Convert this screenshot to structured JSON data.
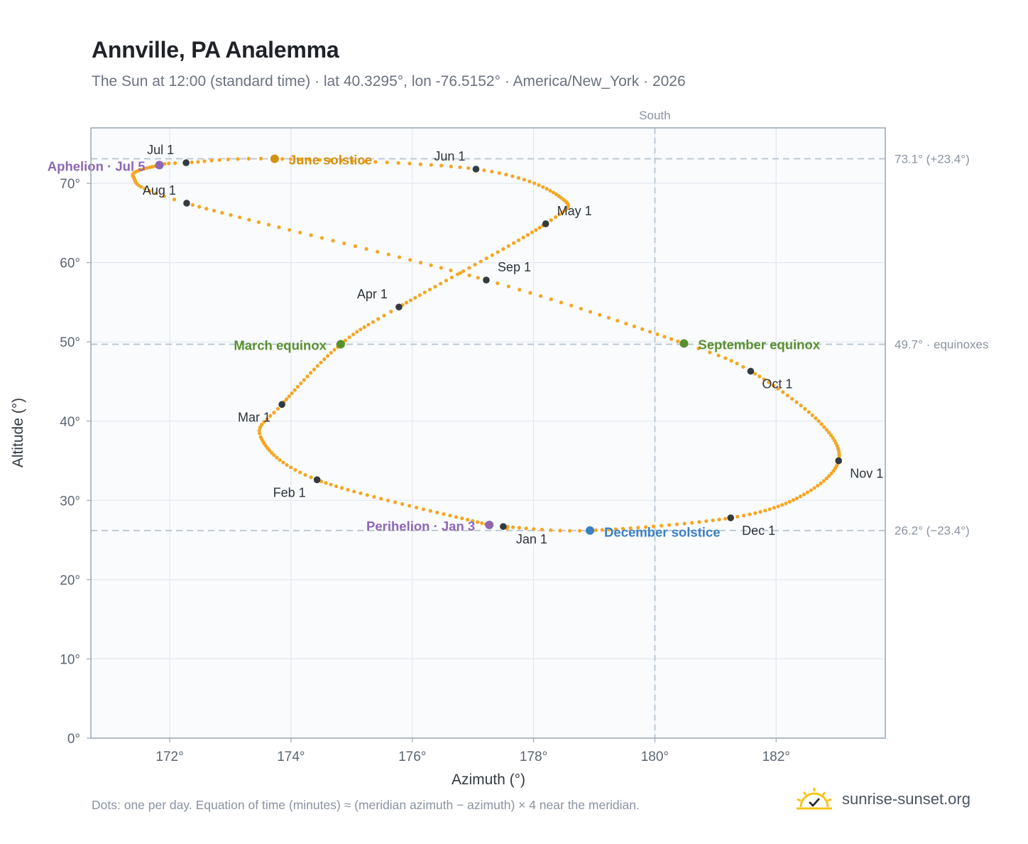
{
  "title": "Annville, PA Analemma",
  "subtitle": "The Sun at 12:00 (standard time) · lat 40.3295°, lon -76.5152° · America/New_York · 2026",
  "footnote": "Dots: one per day. Equation of time (minutes) ≈ (meridian azimuth − azimuth) × 4 near the meridian.",
  "brand": {
    "text": "sunrise-sunset.org",
    "icon": "sunrise-check-icon",
    "color": "#f5c518"
  },
  "colors": {
    "path": "#f5a623",
    "month_marker": "#333a40",
    "solstice_june": "#d4900e",
    "solstice_december": "#3b7fc4",
    "equinox": "#5a8f2e",
    "apsis": "#8e67b3",
    "reference_line": "#b8c4cf",
    "plot_background": "#f9fbfd",
    "grid": "#e4e9ef",
    "axis_text": "#5a6470",
    "annotation_text": "#8a93a0"
  },
  "chart_data": {
    "type": "scatter",
    "xlabel": "Azimuth (°)",
    "ylabel": "Altitude (°)",
    "xlim": [
      170.7,
      183.8
    ],
    "ylim": [
      0,
      77
    ],
    "xticks": [
      {
        "value": 172,
        "label": "172°"
      },
      {
        "value": 174,
        "label": "174°"
      },
      {
        "value": 176,
        "label": "176°"
      },
      {
        "value": 178,
        "label": "178°"
      },
      {
        "value": 180,
        "label": "180°"
      },
      {
        "value": 182,
        "label": "182°"
      }
    ],
    "yticks": [
      {
        "value": 0,
        "label": "0°"
      },
      {
        "value": 10,
        "label": "10°"
      },
      {
        "value": 20,
        "label": "20°"
      },
      {
        "value": 30,
        "label": "30°"
      },
      {
        "value": 40,
        "label": "40°"
      },
      {
        "value": 50,
        "label": "50°"
      },
      {
        "value": 60,
        "label": "60°"
      },
      {
        "value": 70,
        "label": "70°"
      }
    ],
    "grid": true,
    "meridian": {
      "azimuth": 180,
      "label": "South"
    },
    "reference_lines": [
      {
        "altitude": 73.1,
        "label": "73.1° (+23.4°)"
      },
      {
        "altitude": 49.7,
        "label": "49.7° · equinoxes"
      },
      {
        "altitude": 26.2,
        "label": "26.2° (−23.4°)"
      }
    ],
    "path_keypoints": [
      {
        "day": 1,
        "az": 177.5,
        "alt": 26.7
      },
      {
        "day": 3,
        "az": 177.27,
        "alt": 26.9
      },
      {
        "day": 32,
        "az": 174.43,
        "alt": 32.6
      },
      {
        "day": 50,
        "az": 173.5,
        "alt": 38.0
      },
      {
        "day": 60,
        "az": 173.85,
        "alt": 42.1
      },
      {
        "day": 79,
        "az": 174.82,
        "alt": 49.7
      },
      {
        "day": 91,
        "az": 175.78,
        "alt": 54.4
      },
      {
        "day": 121,
        "az": 178.2,
        "alt": 64.9
      },
      {
        "day": 135,
        "az": 178.45,
        "alt": 68.2
      },
      {
        "day": 152,
        "az": 177.05,
        "alt": 71.8
      },
      {
        "day": 172,
        "az": 173.73,
        "alt": 73.1
      },
      {
        "day": 182,
        "az": 172.27,
        "alt": 72.6
      },
      {
        "day": 186,
        "az": 171.83,
        "alt": 72.3
      },
      {
        "day": 200,
        "az": 171.4,
        "alt": 70.8
      },
      {
        "day": 213,
        "az": 172.28,
        "alt": 67.5
      },
      {
        "day": 244,
        "az": 177.22,
        "alt": 57.8
      },
      {
        "day": 266,
        "az": 180.48,
        "alt": 49.8
      },
      {
        "day": 274,
        "az": 181.58,
        "alt": 46.3
      },
      {
        "day": 290,
        "az": 182.7,
        "alt": 40.0
      },
      {
        "day": 305,
        "az": 183.03,
        "alt": 35.0
      },
      {
        "day": 320,
        "az": 182.4,
        "alt": 30.5
      },
      {
        "day": 335,
        "az": 181.25,
        "alt": 27.8
      },
      {
        "day": 355,
        "az": 178.93,
        "alt": 26.2
      },
      {
        "day": 366,
        "az": 177.5,
        "alt": 26.7
      }
    ],
    "month_markers": [
      {
        "label": "Jan 1",
        "az": 177.5,
        "alt": 26.7,
        "anchor": "start",
        "dx": 18,
        "dy": 24
      },
      {
        "label": "Feb 1",
        "az": 174.43,
        "alt": 32.6,
        "anchor": "end",
        "dx": -16,
        "dy": 24
      },
      {
        "label": "Mar 1",
        "az": 173.85,
        "alt": 42.1,
        "anchor": "end",
        "dx": -16,
        "dy": 24
      },
      {
        "label": "Apr 1",
        "az": 175.78,
        "alt": 54.4,
        "anchor": "end",
        "dx": -16,
        "dy": -12
      },
      {
        "label": "May 1",
        "az": 178.2,
        "alt": 64.9,
        "anchor": "start",
        "dx": 16,
        "dy": -12
      },
      {
        "label": "Jun 1",
        "az": 177.05,
        "alt": 71.8,
        "anchor": "end",
        "dx": -15,
        "dy": -12
      },
      {
        "label": "Jul 1",
        "az": 172.27,
        "alt": 72.6,
        "anchor": "end",
        "dx": -17,
        "dy": -12
      },
      {
        "label": "Aug 1",
        "az": 172.28,
        "alt": 67.5,
        "anchor": "end",
        "dx": -15,
        "dy": -12
      },
      {
        "label": "Sep 1",
        "az": 177.22,
        "alt": 57.8,
        "anchor": "start",
        "dx": 16,
        "dy": -12
      },
      {
        "label": "Oct 1",
        "az": 181.58,
        "alt": 46.3,
        "anchor": "start",
        "dx": 16,
        "dy": 24
      },
      {
        "label": "Nov 1",
        "az": 183.03,
        "alt": 35.0,
        "anchor": "start",
        "dx": 16,
        "dy": 24
      },
      {
        "label": "Dec 1",
        "az": 181.25,
        "alt": 27.8,
        "anchor": "start",
        "dx": 16,
        "dy": 24
      }
    ],
    "events": [
      {
        "label": "June solstice",
        "az": 173.73,
        "alt": 73.1,
        "color_key": "solstice_june",
        "anchor": "start",
        "dx": 20,
        "dy": 8
      },
      {
        "label": "December solstice",
        "az": 178.93,
        "alt": 26.2,
        "color_key": "solstice_december",
        "anchor": "start",
        "dx": 20,
        "dy": 9
      },
      {
        "label": "March equinox",
        "az": 174.82,
        "alt": 49.7,
        "color_key": "equinox",
        "anchor": "end",
        "dx": -20,
        "dy": 8
      },
      {
        "label": "September equinox",
        "az": 180.48,
        "alt": 49.8,
        "color_key": "equinox",
        "anchor": "start",
        "dx": 20,
        "dy": 8
      },
      {
        "label": "Aphelion · Jul 5",
        "az": 171.83,
        "alt": 72.3,
        "color_key": "apsis",
        "anchor": "end",
        "dx": -20,
        "dy": 8
      },
      {
        "label": "Perihelion · Jan 3",
        "az": 177.27,
        "alt": 26.9,
        "color_key": "apsis",
        "anchor": "end",
        "dx": -20,
        "dy": 8
      }
    ]
  }
}
